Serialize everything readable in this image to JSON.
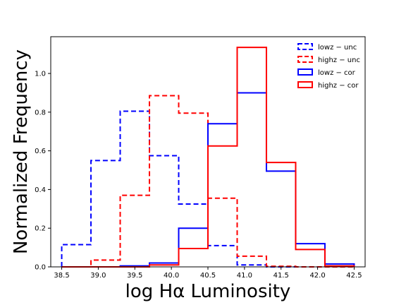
{
  "chart_data": {
    "type": "histogram",
    "xlabel": "log Hα Luminosity",
    "ylabel": "Normalized Frequency",
    "xlim": [
      38.35,
      42.65
    ],
    "ylim": [
      0,
      1.19
    ],
    "xticks": [
      38.5,
      39.0,
      39.5,
      40.0,
      40.5,
      41.0,
      41.5,
      42.0,
      42.5
    ],
    "xtick_labels": [
      "38.5",
      "39.0",
      "39.5",
      "40.0",
      "40.5",
      "41.0",
      "41.5",
      "42.0",
      "42.5"
    ],
    "yticks": [
      0.0,
      0.2,
      0.4,
      0.6,
      0.8,
      1.0
    ],
    "ytick_labels": [
      "0.0",
      "0.2",
      "0.4",
      "0.6",
      "0.8",
      "1.0"
    ],
    "legend_position": "top-right",
    "bin_edges": [
      38.5,
      38.9,
      39.3,
      39.7,
      40.1,
      40.5,
      40.9,
      41.3,
      41.7,
      42.1,
      42.5
    ],
    "series": [
      {
        "name": "lowz − unc",
        "color": "#0000ff",
        "dashed": true,
        "values": [
          0.115,
          0.55,
          0.805,
          0.575,
          0.325,
          0.11,
          0.01,
          0.0,
          0.0,
          0.0
        ]
      },
      {
        "name": "highz − unc",
        "color": "#ff0000",
        "dashed": true,
        "values": [
          0.0,
          0.035,
          0.37,
          0.885,
          0.795,
          0.355,
          0.055,
          0.003,
          0.0,
          0.0
        ]
      },
      {
        "name": "lowz − cor",
        "color": "#0000ff",
        "dashed": false,
        "values": [
          0.0,
          0.0,
          0.005,
          0.02,
          0.2,
          0.74,
          0.9,
          0.495,
          0.12,
          0.015
        ]
      },
      {
        "name": "highz − cor",
        "color": "#ff0000",
        "dashed": false,
        "values": [
          0.0,
          0.0,
          0.0,
          0.01,
          0.095,
          0.625,
          1.135,
          0.54,
          0.09,
          0.005
        ]
      }
    ]
  }
}
